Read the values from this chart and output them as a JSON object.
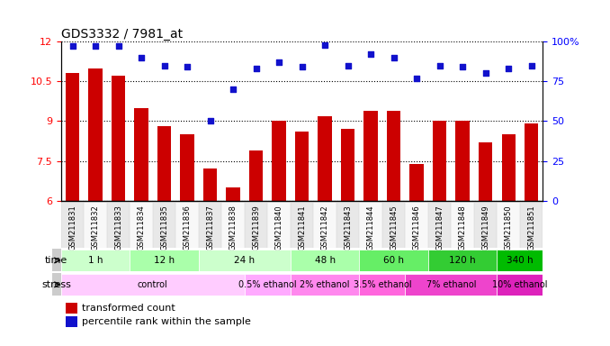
{
  "title": "GDS3332 / 7981_at",
  "samples": [
    "GSM211831",
    "GSM211832",
    "GSM211833",
    "GSM211834",
    "GSM211835",
    "GSM211836",
    "GSM211837",
    "GSM211838",
    "GSM211839",
    "GSM211840",
    "GSM211841",
    "GSM211842",
    "GSM211843",
    "GSM211844",
    "GSM211845",
    "GSM211846",
    "GSM211847",
    "GSM211848",
    "GSM211849",
    "GSM211850",
    "GSM211851"
  ],
  "transformed_count": [
    10.8,
    11.0,
    10.7,
    9.5,
    8.8,
    8.5,
    7.2,
    6.5,
    7.9,
    9.0,
    8.6,
    9.2,
    8.7,
    9.4,
    9.4,
    7.4,
    9.0,
    9.0,
    8.2,
    8.5,
    8.9
  ],
  "percentile_rank": [
    97,
    97,
    97,
    90,
    85,
    84,
    50,
    70,
    83,
    87,
    84,
    98,
    85,
    92,
    90,
    77,
    85,
    84,
    80,
    83,
    85
  ],
  "ylim_left": [
    6,
    12
  ],
  "ylim_right": [
    0,
    100
  ],
  "yticks_left": [
    6,
    7.5,
    9,
    10.5,
    12
  ],
  "yticks_right": [
    0,
    25,
    50,
    75,
    100
  ],
  "bar_color": "#cc0000",
  "dot_color": "#1111cc",
  "time_groups": [
    {
      "label": "1 h",
      "start": 0,
      "end": 3,
      "color": "#ccffcc"
    },
    {
      "label": "12 h",
      "start": 3,
      "end": 6,
      "color": "#aaffaa"
    },
    {
      "label": "24 h",
      "start": 6,
      "end": 10,
      "color": "#ccffcc"
    },
    {
      "label": "48 h",
      "start": 10,
      "end": 13,
      "color": "#aaffaa"
    },
    {
      "label": "60 h",
      "start": 13,
      "end": 16,
      "color": "#66ee66"
    },
    {
      "label": "120 h",
      "start": 16,
      "end": 19,
      "color": "#33cc33"
    },
    {
      "label": "340 h",
      "start": 19,
      "end": 21,
      "color": "#00bb00"
    }
  ],
  "stress_groups": [
    {
      "label": "control",
      "start": 0,
      "end": 8,
      "color": "#ffccff"
    },
    {
      "label": "0.5% ethanol",
      "start": 8,
      "end": 10,
      "color": "#ffaaff"
    },
    {
      "label": "2% ethanol",
      "start": 10,
      "end": 13,
      "color": "#ff88ee"
    },
    {
      "label": "3.5% ethanol",
      "start": 13,
      "end": 15,
      "color": "#ff66dd"
    },
    {
      "label": "7% ethanol",
      "start": 15,
      "end": 19,
      "color": "#ee44cc"
    },
    {
      "label": "10% ethanol",
      "start": 19,
      "end": 21,
      "color": "#dd22bb"
    }
  ],
  "legend_bar_label": "transformed count",
  "legend_dot_label": "percentile rank within the sample",
  "time_label": "time",
  "stress_label": "stress",
  "bg_color": "#ffffff",
  "label_area_color": "#dddddd"
}
